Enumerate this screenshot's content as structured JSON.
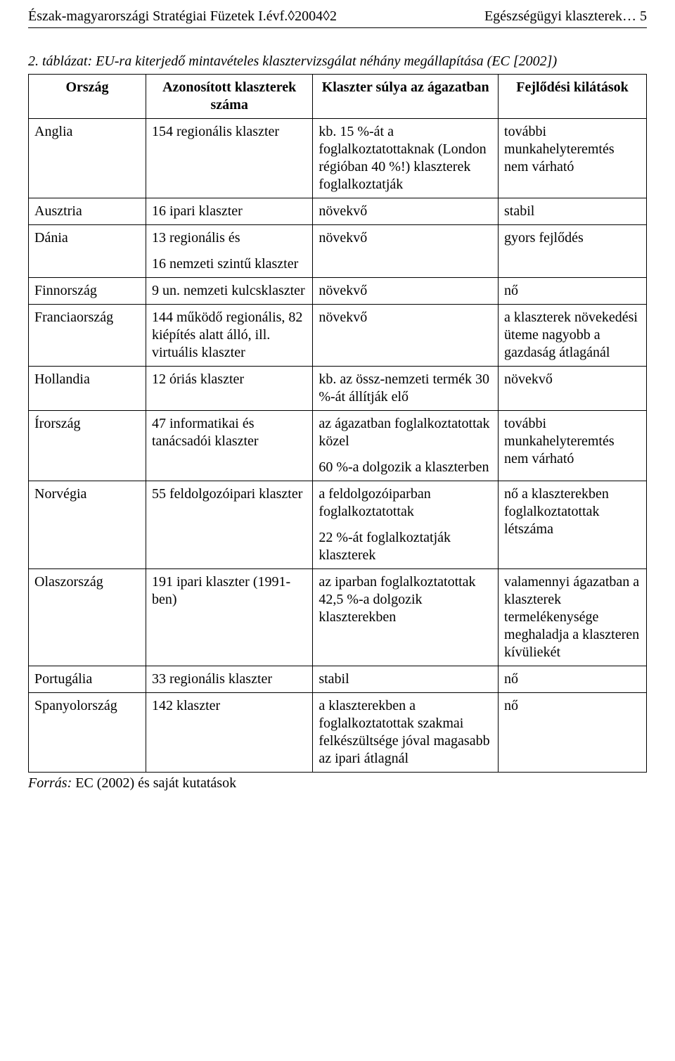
{
  "header": {
    "left": "Észak-magyarországi Stratégiai Füzetek I.évf.◊2004◊2",
    "right": "Egészségügyi klaszterek… 5"
  },
  "caption": "2. táblázat: EU-ra kiterjedő mintavételes klasztervizsgálat néhány megállapítása (EC [2002])",
  "columns": {
    "c1": "Ország",
    "c2": "Azonosított klaszterek száma",
    "c3": "Klaszter súlya az ágazatban",
    "c4": "Fejlődési kilátások"
  },
  "rows": [
    {
      "country": "Anglia",
      "clusters": "154 regionális klaszter",
      "weight": "kb. 15 %-át a foglalkoztatottaknak (London régióban 40 %!) klaszterek foglalkoztatják",
      "outlook": "további munkahelyteremtés nem várható"
    },
    {
      "country": "Ausztria",
      "clusters": "16 ipari klaszter",
      "weight": "növekvő",
      "outlook": "stabil"
    },
    {
      "country": "Dánia",
      "clusters": "13 regionális és\n16 nemzeti szintű klaszter",
      "weight": "növekvő",
      "outlook": "gyors fejlődés"
    },
    {
      "country": "Finnország",
      "clusters": "9 un. nemzeti kulcsklaszter",
      "weight": "növekvő",
      "outlook": "nő"
    },
    {
      "country": "Franciaország",
      "clusters": "144 működő regionális, 82 kiépítés alatt álló, ill. virtuális klaszter",
      "weight": "növekvő",
      "outlook": "a klaszterek növekedési üteme nagyobb a gazdaság átlagánál"
    },
    {
      "country": "Hollandia",
      "clusters": "12 óriás klaszter",
      "weight": "kb. az össz-nemzeti termék 30 %-át állítják elő",
      "outlook": "növekvő"
    },
    {
      "country": "Írország",
      "clusters": "47 informatikai és tanácsadói klaszter",
      "weight": "az ágazatban foglalkoztatottak közel\n60 %-a dolgozik a klaszterben",
      "outlook": "további munkahelyteremtés nem várható"
    },
    {
      "country": "Norvégia",
      "clusters": "55 feldolgozóipari klaszter",
      "weight": "a feldolgozóiparban foglalkoztatottak\n22 %-át foglalkoztatják klaszterek",
      "outlook": "nő a klaszterekben foglalkoztatottak létszáma"
    },
    {
      "country": "Olaszország",
      "clusters": "191 ipari klaszter (1991-ben)",
      "weight": "az iparban foglalkoztatottak 42,5 %-a dolgozik klaszterekben",
      "outlook": "valamennyi ágazatban a klaszterek termelékenysége meghaladja a klaszteren kívüliekét"
    },
    {
      "country": "Portugália",
      "clusters": "33 regionális klaszter",
      "weight": "stabil",
      "outlook": "nő"
    },
    {
      "country": "Spanyolország",
      "clusters": "142 klaszter",
      "weight": "a klaszterekben a foglalkoztatottak szakmai felkészültsége jóval magasabb az ipari átlagnál",
      "outlook": "nő"
    }
  ],
  "source": {
    "label": "Forrás:",
    "text": " EC (2002) és saját kutatások"
  }
}
